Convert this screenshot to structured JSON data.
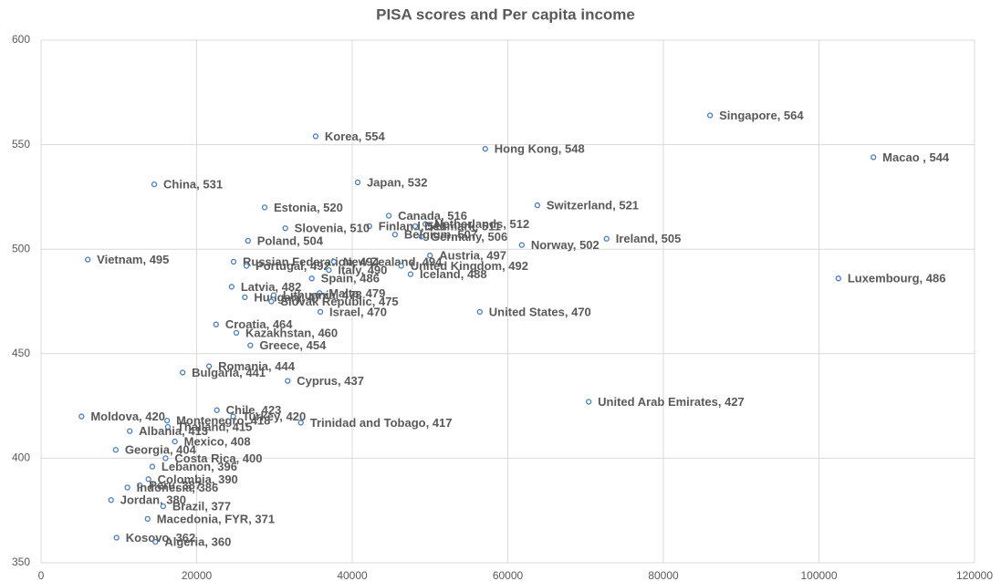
{
  "chart_data": {
    "type": "scatter",
    "title": "PISA scores and Per capita income",
    "x": [
      86000,
      35300,
      57100,
      107000,
      40700,
      14550,
      63800,
      28740,
      44700,
      49400,
      42200,
      48100,
      31400,
      48900,
      45500,
      72700,
      26600,
      61800,
      50000,
      6000,
      24750,
      37650,
      46300,
      102500,
      26400,
      37000,
      47500,
      34800,
      24500,
      35800,
      26200,
      29900,
      29600,
      35900,
      56400,
      22500,
      25100,
      26900,
      21600,
      18200,
      31700,
      70400,
      22600,
      24700,
      5200,
      16200,
      33400,
      16300,
      11400,
      17200,
      9600,
      16000,
      14300,
      13800,
      12700,
      11100,
      9000,
      15700,
      13700,
      9700,
      14700
    ],
    "values": [
      564,
      554,
      548,
      544,
      532,
      531,
      521,
      520,
      516,
      512,
      511,
      511,
      510,
      506,
      507,
      505,
      504,
      502,
      497,
      495,
      494,
      494,
      492,
      486,
      492,
      490,
      488,
      486,
      482,
      479,
      477,
      478,
      475,
      470,
      470,
      464,
      460,
      454,
      444,
      441,
      437,
      427,
      423,
      420,
      420,
      418,
      417,
      415,
      413,
      408,
      404,
      400,
      396,
      390,
      387,
      386,
      380,
      377,
      371,
      362,
      360
    ],
    "value_labels": [
      "Singapore, 564",
      "Korea, 554",
      "Hong Kong, 548",
      "Macao , 544",
      "Japan, 532",
      "China, 531",
      "Switzerland, 521",
      "Estonia, 520",
      "Canada, 516",
      "Netherlands, 512",
      "Finland, 511",
      "Denmark, 511",
      "Slovenia, 510",
      "Germany, 506",
      "Belgium, 507",
      "Ireland, 505",
      "Poland, 504",
      "Norway, 502",
      "Austria, 497",
      "Vietnam, 495",
      "Russian Federation, 494",
      "New Zealand, 494",
      "United Kingdom, 492",
      "Luxembourg, 486",
      "Portugal, 492",
      "Italy, 490",
      "Iceland, 488",
      "Spain, 486",
      "Latvia, 482",
      "Malta, 479",
      "Hungary, 477",
      "Lithuania, 478",
      "Slovak Republic, 475",
      "Israel, 470",
      "United States, 470",
      "Croatia, 464",
      "Kazakhstan, 460",
      "Greece, 454",
      "Romania, 444",
      "Bulgaria, 441",
      "Cyprus, 437",
      "United Arab Emirates, 427",
      "Chile, 423",
      "Turkey, 420",
      "Moldova, 420",
      "Montenegro, 418",
      "Trinidad and Tobago, 417",
      "Thailand, 415",
      "Albania, 413",
      "Mexico, 408",
      "Georgia, 404",
      "Costa Rica, 400",
      "Lebanon, 396",
      "Colombia, 390",
      "Peru, 387",
      "Indonesia, 386",
      "Jordan, 380",
      "Brazil, 377",
      "Macedonia, FYR, 371",
      "Kosovo, 362",
      "Algeria, 360"
    ],
    "xlim": [
      0,
      120000
    ],
    "ylim": [
      350,
      600
    ],
    "xticks": [
      0,
      20000,
      40000,
      60000,
      80000,
      100000,
      120000
    ],
    "yticks": [
      350,
      400,
      450,
      500,
      550,
      600
    ],
    "color": "#4a7ebb",
    "grid": true
  }
}
